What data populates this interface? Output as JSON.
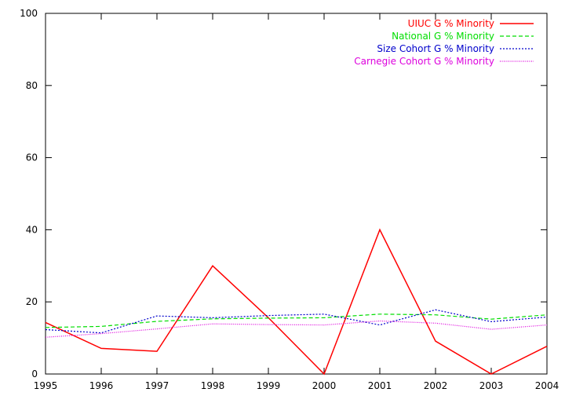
{
  "chart_data": {
    "type": "line",
    "x": [
      1995,
      1996,
      1997,
      1998,
      1999,
      2000,
      2001,
      2002,
      2003,
      2004
    ],
    "xlim": [
      1995,
      2004
    ],
    "ylim": [
      0,
      100
    ],
    "x_ticks": [
      "1995",
      "1996",
      "1997",
      "1998",
      "1999",
      "2000",
      "2001",
      "2002",
      "2003",
      "2004"
    ],
    "y_ticks": [
      "0",
      "20",
      "40",
      "60",
      "80",
      "100"
    ],
    "grid": false,
    "legend_position": "top-right",
    "series": [
      {
        "name": "UIUC G % Minority",
        "color": "#ff0000",
        "dash": "solid",
        "values": [
          14.3,
          7.1,
          6.3,
          30.0,
          15.6,
          0.0,
          40.0,
          9.1,
          0.0,
          7.7
        ]
      },
      {
        "name": "National G % Minority",
        "color": "#00dd00",
        "dash": "dashed",
        "values": [
          12.9,
          13.2,
          14.6,
          15.3,
          15.5,
          15.6,
          16.6,
          16.4,
          15.2,
          16.4
        ]
      },
      {
        "name": "Size Cohort G % Minority",
        "color": "#0000cc",
        "dash": "dotted",
        "values": [
          12.3,
          11.4,
          16.1,
          15.6,
          16.2,
          16.6,
          13.6,
          17.8,
          14.5,
          15.8
        ]
      },
      {
        "name": "Carnegie Cohort G % Minority",
        "color": "#dd00dd",
        "dash": "fine-dotted",
        "values": [
          10.2,
          11.2,
          12.5,
          13.9,
          13.7,
          13.6,
          14.7,
          14.1,
          12.4,
          13.6
        ]
      }
    ]
  }
}
